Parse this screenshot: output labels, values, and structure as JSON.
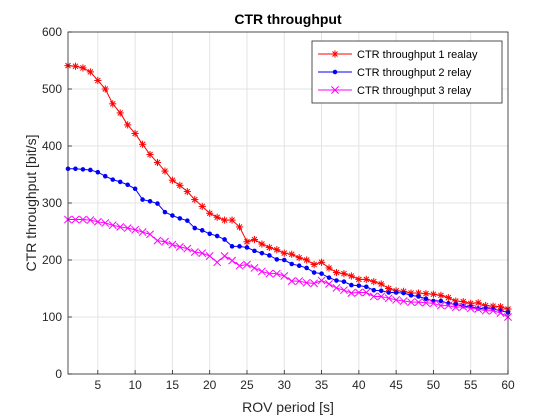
{
  "chart_data": {
    "type": "line",
    "title": "CTR throughput",
    "xlabel": "ROV period [s]",
    "ylabel": "CTR throughput [bit/s]",
    "xlim": [
      1,
      60
    ],
    "ylim": [
      0,
      600
    ],
    "x_ticks": [
      5,
      10,
      15,
      20,
      25,
      30,
      35,
      40,
      45,
      50,
      55,
      60
    ],
    "y_ticks": [
      0,
      100,
      200,
      300,
      400,
      500,
      600
    ],
    "grid": true,
    "legend_position": "top-right",
    "x": [
      1,
      2,
      3,
      4,
      5,
      6,
      7,
      8,
      9,
      10,
      11,
      12,
      13,
      14,
      15,
      16,
      17,
      18,
      19,
      20,
      21,
      22,
      23,
      24,
      25,
      26,
      27,
      28,
      29,
      30,
      31,
      32,
      33,
      34,
      35,
      36,
      37,
      38,
      39,
      40,
      41,
      42,
      43,
      44,
      45,
      46,
      47,
      48,
      49,
      50,
      51,
      52,
      53,
      54,
      55,
      56,
      57,
      58,
      59,
      60
    ],
    "series": [
      {
        "name": "CTR throughput 1 realay",
        "color": "#ff0000",
        "marker": "asterisk",
        "values": [
          541,
          540,
          537,
          530,
          515,
          500,
          474,
          458,
          437,
          422,
          403,
          385,
          371,
          356,
          340,
          331,
          320,
          306,
          294,
          282,
          275,
          270,
          270,
          258,
          232,
          236,
          228,
          222,
          218,
          212,
          210,
          204,
          200,
          192,
          196,
          186,
          178,
          176,
          172,
          166,
          166,
          162,
          158,
          150,
          146,
          145,
          142,
          142,
          141,
          140,
          138,
          134,
          128,
          127,
          124,
          125,
          120,
          119,
          118,
          114
        ]
      },
      {
        "name": "CTR throughput 2 relay",
        "color": "#0000ff",
        "marker": "dot",
        "values": [
          360,
          360,
          359,
          358,
          354,
          347,
          341,
          337,
          332,
          325,
          306,
          303,
          299,
          284,
          278,
          273,
          269,
          256,
          252,
          246,
          242,
          236,
          224,
          224,
          222,
          216,
          212,
          208,
          201,
          200,
          193,
          190,
          186,
          178,
          176,
          169,
          164,
          162,
          156,
          155,
          153,
          147,
          146,
          143,
          143,
          142,
          138,
          136,
          132,
          128,
          128,
          124,
          122,
          119,
          118,
          115,
          115,
          114,
          111,
          108
        ]
      },
      {
        "name": "CTR throughput 3 relay",
        "color": "#ff00ff",
        "marker": "cross",
        "values": [
          271,
          271,
          271,
          270,
          267,
          265,
          261,
          258,
          256,
          253,
          249,
          245,
          234,
          232,
          227,
          223,
          220,
          214,
          212,
          207,
          196,
          207,
          199,
          190,
          192,
          186,
          180,
          176,
          176,
          172,
          163,
          163,
          160,
          159,
          164,
          158,
          151,
          147,
          142,
          143,
          143,
          136,
          136,
          133,
          130,
          128,
          126,
          126,
          125,
          124,
          120,
          120,
          117,
          118,
          115,
          114,
          111,
          111,
          107,
          100
        ]
      }
    ]
  }
}
